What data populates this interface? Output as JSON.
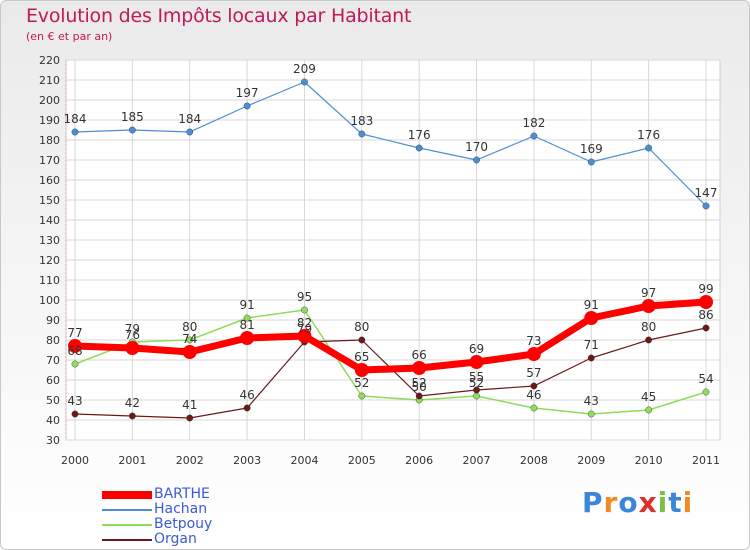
{
  "title": "Evolution des Impôts locaux par Habitant",
  "subtitle": "(en € et par an)",
  "brand": "Proxiti",
  "chart_data": {
    "type": "line",
    "title": "Evolution des Impôts locaux par Habitant",
    "subtitle": "(en € et par an)",
    "x": [
      "2000",
      "2001",
      "2002",
      "2003",
      "2004",
      "2005",
      "2006",
      "2007",
      "2008",
      "2009",
      "2010",
      "2011"
    ],
    "ylim": [
      30,
      220
    ],
    "yticks": [
      30,
      40,
      50,
      60,
      70,
      80,
      90,
      100,
      110,
      120,
      130,
      140,
      150,
      160,
      170,
      180,
      190,
      200,
      210,
      220
    ],
    "grid": true,
    "legend_position": "bottom-left",
    "series": [
      {
        "name": "BARTHE",
        "color": "#ff0000",
        "values": [
          77,
          76,
          74,
          81,
          82,
          65,
          66,
          69,
          73,
          91,
          97,
          99
        ]
      },
      {
        "name": "Hachan",
        "color": "#4a8fd4",
        "values": [
          184,
          185,
          184,
          197,
          209,
          183,
          176,
          170,
          182,
          169,
          176,
          147
        ]
      },
      {
        "name": "Betpouy",
        "color": "#8edc5a",
        "values": [
          68,
          79,
          80,
          91,
          95,
          52,
          50,
          52,
          46,
          43,
          45,
          54
        ]
      },
      {
        "name": "Organ",
        "color": "#6b1a1a",
        "values": [
          43,
          42,
          41,
          46,
          79,
          80,
          52,
          55,
          57,
          71,
          80,
          86
        ]
      }
    ]
  }
}
